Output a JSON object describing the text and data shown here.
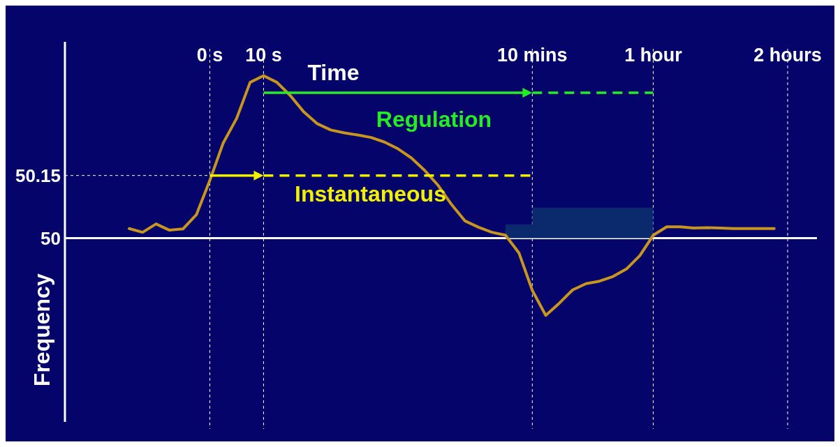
{
  "chart_data": {
    "type": "line",
    "xlabel": "Time",
    "ylabel": "Frequency",
    "categories": [
      null,
      null,
      null,
      null,
      null,
      null,
      "0 s",
      null,
      null,
      null,
      "10 s",
      null,
      null,
      null,
      null,
      null,
      null,
      null,
      null,
      null,
      null,
      null,
      null,
      null,
      null,
      null,
      null,
      null,
      null,
      null,
      "10 mins",
      null,
      null,
      null,
      null,
      null,
      null,
      null,
      null,
      "1 hour",
      null,
      null,
      null,
      null,
      null,
      null,
      null,
      null,
      null,
      "2 hours"
    ],
    "ylim": [
      49.56,
      50.47
    ],
    "yticks": [
      50,
      50.15
    ],
    "grid": "x",
    "ref_lines": [
      {
        "axis": "y",
        "value": 50.15,
        "line_style": "dashed",
        "color": "#ffffff"
      },
      {
        "axis": "y",
        "value": 50,
        "line_style": "solid",
        "color": "#ffffff"
      }
    ],
    "series": [
      {
        "color": "#c8961e",
        "values": [
          50.023,
          50.014,
          50.034,
          50.019,
          50.022,
          50.056,
          50.138,
          50.228,
          50.287,
          50.373,
          50.389,
          50.373,
          50.341,
          50.302,
          50.274,
          50.259,
          50.252,
          50.247,
          50.241,
          50.23,
          50.214,
          50.192,
          50.162,
          50.126,
          50.08,
          50.041,
          50.026,
          50.014,
          50.007,
          49.965,
          49.875,
          49.815,
          49.844,
          49.876,
          49.891,
          49.897,
          49.908,
          49.926,
          49.958,
          50.007,
          50.027,
          50.027,
          50.024,
          50.025,
          50.024,
          50.023,
          50.023,
          50.023,
          50.023,
          null
        ]
      },
      {
        "type": "area",
        "color": "#0b2a6e",
        "values": [
          null,
          null,
          null,
          null,
          null,
          null,
          null,
          null,
          null,
          null,
          null,
          null,
          null,
          null,
          null,
          null,
          null,
          null,
          null,
          null,
          null,
          null,
          null,
          null,
          null,
          null,
          null,
          null,
          50.033,
          50.033,
          50.073,
          50.073,
          50.073,
          50.073,
          50.073,
          50.073,
          50.073,
          50.073,
          50.073,
          50.073,
          null,
          null,
          null,
          null,
          null,
          null,
          null,
          null,
          null,
          null
        ]
      }
    ],
    "annotations": [
      "Regulation",
      "Instantaneous"
    ]
  }
}
